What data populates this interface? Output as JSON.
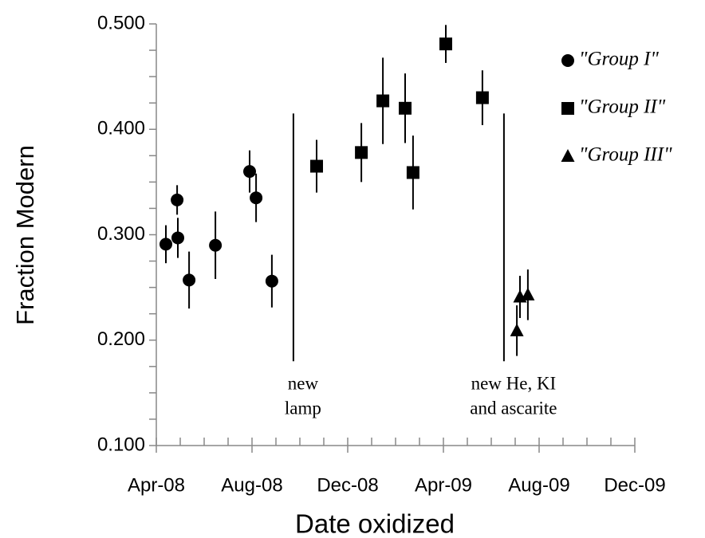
{
  "chart_data": {
    "type": "scatter",
    "x_label": "Date oxidized",
    "y_label": "Fraction Modern",
    "xlim": [
      0,
      20
    ],
    "xticks": [
      {
        "value": 0,
        "label": "Apr-08"
      },
      {
        "value": 4,
        "label": "Aug-08"
      },
      {
        "value": 8,
        "label": "Dec-08"
      },
      {
        "value": 12,
        "label": "Apr-09"
      },
      {
        "value": 16,
        "label": "Aug-09"
      },
      {
        "value": 20,
        "label": "Dec-09"
      }
    ],
    "xminorticks": [
      1,
      2,
      3,
      5,
      6,
      7,
      9,
      10,
      11,
      13,
      14,
      15,
      17,
      18,
      19
    ],
    "ylim": [
      0.1,
      0.5
    ],
    "yticks": [
      {
        "value": 0.1,
        "label": "0.100"
      },
      {
        "value": 0.2,
        "label": "0.200"
      },
      {
        "value": 0.3,
        "label": "0.300"
      },
      {
        "value": 0.4,
        "label": "0.400"
      },
      {
        "value": 0.5,
        "label": "0.500"
      }
    ],
    "yminorticks": [
      0.125,
      0.15,
      0.175,
      0.225,
      0.25,
      0.275,
      0.325,
      0.35,
      0.375,
      0.425,
      0.45,
      0.475
    ],
    "grid": false,
    "legend": "upper right",
    "series": [
      {
        "name": "\"Group I\"",
        "color": "#000000",
        "marker": "circle",
        "x": [
          0.4,
          0.87,
          0.9,
          1.37,
          2.47,
          3.9,
          4.17,
          4.83
        ],
        "values": [
          0.291,
          0.333,
          0.297,
          0.257,
          0.29,
          0.36,
          0.335,
          0.256
        ],
        "errors": [
          0.018,
          0.014,
          0.019,
          0.027,
          0.032,
          0.02,
          0.023,
          0.025
        ]
      },
      {
        "name": "\"Group II\"",
        "color": "#000000",
        "marker": "square",
        "x": [
          6.7,
          8.57,
          9.47,
          10.4,
          10.73,
          12.1,
          13.63
        ],
        "values": [
          0.365,
          0.378,
          0.427,
          0.42,
          0.359,
          0.481,
          0.43
        ],
        "errors": [
          0.025,
          0.028,
          0.041,
          0.033,
          0.035,
          0.018,
          0.026
        ]
      },
      {
        "name": "\"Group III\"",
        "color": "#000000",
        "marker": "triangle",
        "x": [
          15.07,
          15.2,
          15.53
        ],
        "values": [
          0.209,
          0.241,
          0.243
        ],
        "errors": [
          0.024,
          0.02,
          0.024
        ]
      }
    ],
    "annotations": [
      {
        "text": [
          "new",
          "lamp"
        ],
        "x": 5.73,
        "y_range": [
          0.18,
          0.415
        ]
      },
      {
        "text": [
          "new He, KI",
          "and ascarite"
        ],
        "x": 14.53,
        "y_range": [
          0.18,
          0.415
        ]
      }
    ]
  }
}
